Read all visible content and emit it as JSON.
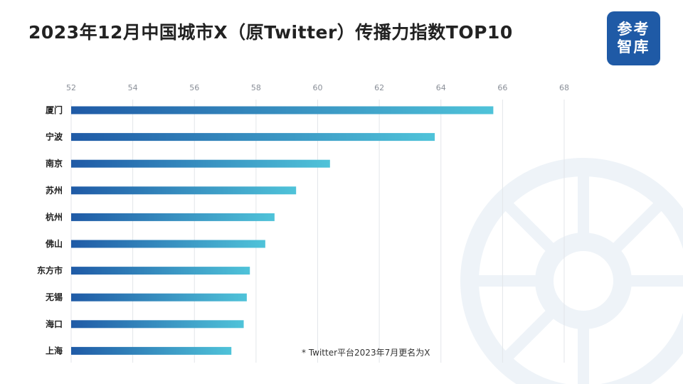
{
  "title": "2023年12月中国城市X（原Twitter）传播力指数TOP10",
  "logo": {
    "line1": "参考",
    "line2": "智库"
  },
  "footnote": "* Twitter平台2023年7月更名为X",
  "colors": {
    "bar_start": "#1f5aa6",
    "bar_end": "#4fc3d9",
    "logo": "#1f5aa6",
    "grid": "#e3e6ea"
  },
  "chart_data": {
    "type": "bar",
    "orientation": "horizontal",
    "categories": [
      "厦门",
      "宁波",
      "南京",
      "苏州",
      "杭州",
      "佛山",
      "东方市",
      "无锡",
      "海口",
      "上海"
    ],
    "values": [
      65.7,
      63.8,
      60.4,
      59.3,
      58.6,
      58.3,
      57.8,
      57.7,
      57.6,
      57.2
    ],
    "xlim": [
      52,
      68
    ],
    "xticks": [
      "52",
      "54",
      "56",
      "58",
      "60",
      "62",
      "64",
      "66",
      "68"
    ],
    "xaxis_position": "top",
    "grid": true,
    "legend": "none"
  }
}
